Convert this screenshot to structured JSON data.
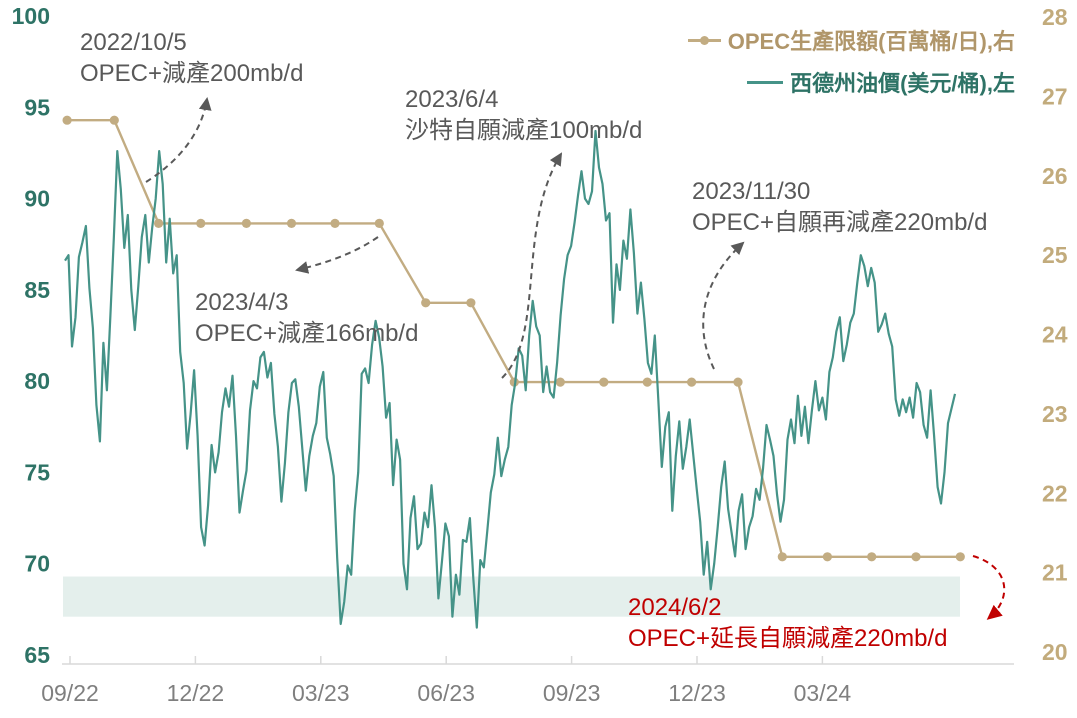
{
  "legend": {
    "items": [
      {
        "label": "OPEC生產限額(百萬桶/日),右",
        "color": "#B0966A",
        "marker": "line-dot"
      },
      {
        "label": "西德州油價(美元/桶),左",
        "color": "#2E7366",
        "marker": "line"
      }
    ]
  },
  "annotations": [
    {
      "date": "2022/10/5",
      "text": "OPEC+減產200mb/d",
      "color": "#595959"
    },
    {
      "date": "2023/4/3",
      "text": "OPEC+減產166mb/d",
      "color": "#595959"
    },
    {
      "date": "2023/6/4",
      "text": "沙特自願減產100mb/d",
      "color": "#595959"
    },
    {
      "date": "2023/11/30",
      "text": "OPEC+自願再減產220mb/d",
      "color": "#595959"
    },
    {
      "date": "2024/6/2",
      "text": "OPEC+延長自願減產220mb/d",
      "color": "#C00000"
    }
  ],
  "chart_data": {
    "type": "line",
    "left_axis": {
      "label": "西德州油價(美元/桶)",
      "min": 65,
      "max": 100,
      "ticks": [
        100,
        95,
        90,
        85,
        80,
        75,
        70,
        65
      ],
      "color": "#2E7366"
    },
    "right_axis": {
      "label": "OPEC生產限額(百萬桶/日)",
      "min": 20,
      "max": 28,
      "ticks": [
        28,
        27,
        26,
        25,
        24,
        23,
        22,
        21,
        20
      ],
      "color": "#C2AB7C"
    },
    "x_axis": {
      "labels": [
        "09/22",
        "12/22",
        "03/23",
        "06/23",
        "09/23",
        "12/23",
        "03/24"
      ],
      "month_index": [
        0,
        3,
        6,
        9,
        12,
        15,
        18
      ],
      "color": "#7F7F7F"
    },
    "band": {
      "axis": "left",
      "from": 67.1,
      "to": 69.3,
      "color": "#E4EFEC"
    },
    "series": [
      {
        "name": "OPEC生產限額(百萬桶/日),右",
        "axis": "right",
        "color": "#C2AC82",
        "marker": true,
        "x_months": [
          -0.07,
          1.06,
          2.12,
          3.13,
          4.22,
          5.3,
          6.34,
          7.4,
          8.51,
          9.59,
          10.63,
          11.73,
          12.77,
          13.81,
          14.87,
          15.98,
          17.04,
          18.12,
          19.18,
          20.24,
          21.3
        ],
        "values": [
          26.7,
          26.7,
          25.4,
          25.4,
          25.4,
          25.4,
          25.4,
          25.4,
          24.4,
          24.4,
          23.4,
          23.4,
          23.4,
          23.4,
          23.4,
          23.4,
          21.2,
          21.2,
          21.2,
          21.2,
          21.2
        ]
      },
      {
        "name": "西德州油價(美元/桶),左",
        "axis": "left",
        "color": "#459388",
        "marker": false,
        "x_start_month": -0.12,
        "x_step_month": 0.0835,
        "values": [
          86.6,
          86.9,
          81.9,
          83.5,
          86.8,
          87.6,
          88.5,
          85.1,
          82.9,
          78.7,
          76.7,
          82.1,
          79.5,
          83.6,
          87.8,
          92.6,
          90.5,
          87.3,
          89.1,
          85.0,
          82.8,
          85.2,
          87.9,
          89.1,
          86.5,
          88.4,
          90.0,
          92.6,
          90.8,
          86.5,
          88.9,
          85.9,
          86.9,
          81.6,
          79.9,
          76.3,
          78.2,
          80.6,
          77.0,
          72.0,
          71.0,
          73.2,
          76.5,
          75.0,
          76.1,
          78.3,
          79.6,
          78.6,
          80.3,
          77.0,
          72.8,
          74.0,
          75.1,
          78.4,
          80.0,
          79.6,
          81.3,
          81.6,
          80.2,
          81.0,
          78.2,
          76.4,
          73.4,
          75.5,
          78.3,
          79.9,
          80.1,
          78.6,
          76.3,
          74.0,
          75.9,
          77.0,
          77.7,
          79.7,
          80.5,
          76.9,
          76.0,
          74.8,
          70.3,
          66.7,
          67.9,
          69.9,
          69.4,
          72.9,
          75.0,
          80.4,
          80.7,
          79.9,
          82.0,
          83.3,
          82.4,
          80.8,
          78.0,
          78.8,
          74.3,
          76.8,
          75.7,
          70.0,
          68.6,
          72.5,
          73.7,
          70.8,
          71.1,
          72.8,
          72.0,
          74.3,
          72.0,
          68.1,
          70.1,
          72.2,
          71.5,
          67.1,
          69.4,
          68.3,
          71.3,
          71.2,
          72.5,
          69.2,
          66.5,
          70.2,
          69.8,
          71.8,
          73.9,
          74.9,
          76.9,
          74.8,
          75.7,
          76.4,
          78.7,
          79.9,
          81.8,
          81.4,
          79.5,
          82.5,
          84.4,
          83.0,
          82.5,
          79.4,
          80.8,
          79.4,
          79.1,
          81.0,
          83.6,
          85.6,
          86.9,
          87.4,
          88.7,
          90.2,
          91.5,
          90.0,
          89.7,
          90.4,
          93.7,
          91.7,
          90.8,
          88.8,
          89.2,
          83.2,
          86.4,
          85.0,
          87.7,
          86.7,
          89.4,
          87.0,
          83.7,
          85.4,
          83.4,
          81.0,
          80.4,
          82.5,
          79.0,
          75.3,
          77.5,
          78.3,
          72.9,
          75.9,
          77.8,
          75.2,
          76.4,
          77.9,
          76.0,
          74.1,
          72.3,
          69.4,
          71.2,
          68.6,
          70.0,
          72.0,
          74.2,
          75.6,
          73.0,
          71.7,
          70.4,
          72.9,
          73.8,
          70.8,
          72.0,
          72.6,
          74.1,
          73.5,
          75.2,
          77.6,
          76.8,
          75.9,
          73.8,
          72.3,
          73.5,
          76.8,
          77.9,
          76.6,
          79.2,
          77.0,
          78.6,
          76.6,
          78.4,
          80.0,
          78.4,
          79.1,
          77.9,
          80.5,
          81.3,
          82.7,
          83.5,
          81.1,
          82.0,
          83.2,
          83.7,
          85.4,
          86.9,
          86.3,
          85.2,
          86.2,
          85.4,
          82.7,
          83.1,
          83.7,
          82.6,
          81.9,
          79.0,
          78.1,
          79.0,
          78.3,
          79.1,
          78.0,
          79.9,
          79.4,
          77.6,
          76.9,
          79.5,
          77.0,
          74.2,
          73.3,
          75.0,
          77.7,
          78.5,
          79.3
        ]
      }
    ]
  }
}
